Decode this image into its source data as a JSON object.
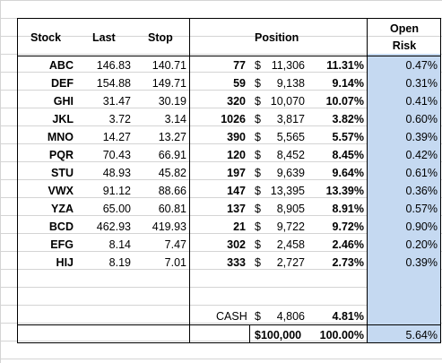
{
  "headers": {
    "stock": "Stock",
    "last": "Last",
    "stop": "Stop",
    "position": "Position",
    "open_risk_1": "Open",
    "open_risk_2": "Risk"
  },
  "rows": [
    {
      "stock": "ABC",
      "last": "146.83",
      "stop": "140.71",
      "shares": "77",
      "dollar": "$",
      "value": "11,306",
      "pct": "11.31%",
      "risk": "0.47%"
    },
    {
      "stock": "DEF",
      "last": "154.88",
      "stop": "149.71",
      "shares": "59",
      "dollar": "$",
      "value": "9,138",
      "pct": "9.14%",
      "risk": "0.31%"
    },
    {
      "stock": "GHI",
      "last": "31.47",
      "stop": "30.19",
      "shares": "320",
      "dollar": "$",
      "value": "10,070",
      "pct": "10.07%",
      "risk": "0.41%"
    },
    {
      "stock": "JKL",
      "last": "3.72",
      "stop": "3.14",
      "shares": "1026",
      "dollar": "$",
      "value": "3,817",
      "pct": "3.82%",
      "risk": "0.60%"
    },
    {
      "stock": "MNO",
      "last": "14.27",
      "stop": "13.27",
      "shares": "390",
      "dollar": "$",
      "value": "5,565",
      "pct": "5.57%",
      "risk": "0.39%"
    },
    {
      "stock": "PQR",
      "last": "70.43",
      "stop": "66.91",
      "shares": "120",
      "dollar": "$",
      "value": "8,452",
      "pct": "8.45%",
      "risk": "0.42%"
    },
    {
      "stock": "STU",
      "last": "48.93",
      "stop": "45.82",
      "shares": "197",
      "dollar": "$",
      "value": "9,639",
      "pct": "9.64%",
      "risk": "0.61%"
    },
    {
      "stock": "VWX",
      "last": "91.12",
      "stop": "88.66",
      "shares": "147",
      "dollar": "$",
      "value": "13,395",
      "pct": "13.39%",
      "risk": "0.36%"
    },
    {
      "stock": "YZA",
      "last": "65.00",
      "stop": "60.81",
      "shares": "137",
      "dollar": "$",
      "value": "8,905",
      "pct": "8.91%",
      "risk": "0.57%"
    },
    {
      "stock": "BCD",
      "last": "462.93",
      "stop": "419.93",
      "shares": "21",
      "dollar": "$",
      "value": "9,722",
      "pct": "9.72%",
      "risk": "0.90%"
    },
    {
      "stock": "EFG",
      "last": "8.14",
      "stop": "7.47",
      "shares": "302",
      "dollar": "$",
      "value": "2,458",
      "pct": "2.46%",
      "risk": "0.20%"
    },
    {
      "stock": "HIJ",
      "last": "8.19",
      "stop": "7.01",
      "shares": "333",
      "dollar": "$",
      "value": "2,727",
      "pct": "2.73%",
      "risk": "0.39%"
    }
  ],
  "cash": {
    "label": "CASH",
    "dollar": "$",
    "value": "4,806",
    "pct": "4.81%"
  },
  "total": {
    "value": "$100,000",
    "pct": "100.00%",
    "risk": "5.64%"
  }
}
